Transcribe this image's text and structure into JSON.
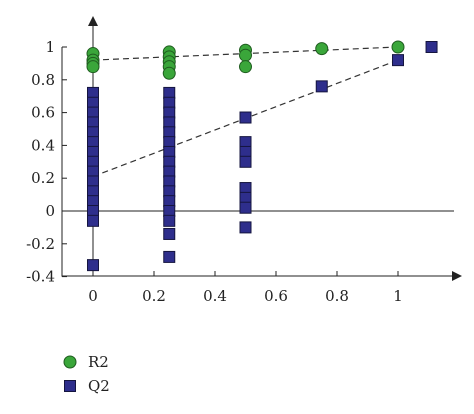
{
  "chart_data": {
    "type": "scatter",
    "title": "",
    "xlabel": "",
    "ylabel": "",
    "xlim": [
      -0.1,
      1.15
    ],
    "ylim": [
      -0.4,
      1.1
    ],
    "x_ticks": [
      0,
      0.2,
      0.4,
      0.6,
      0.8,
      1
    ],
    "x_tick_labels": [
      "0",
      "0.2",
      "0.4",
      "0.6",
      "0.8",
      "1"
    ],
    "y_ticks": [
      -0.4,
      -0.2,
      0,
      0.2,
      0.4,
      0.6,
      0.8,
      1
    ],
    "y_tick_labels": [
      "-0.4",
      "-0.2",
      "0",
      "0.2",
      "0.4",
      "0.6",
      "0.8",
      "1"
    ],
    "grid": false,
    "legend_position": "bottom-left",
    "series": [
      {
        "name": "R2",
        "marker": "circle",
        "color": "#3aa63a",
        "points": [
          [
            0,
            0.96
          ],
          [
            0,
            0.92
          ],
          [
            0,
            0.9
          ],
          [
            0,
            0.88
          ],
          [
            0.25,
            0.97
          ],
          [
            0.25,
            0.94
          ],
          [
            0.25,
            0.91
          ],
          [
            0.25,
            0.88
          ],
          [
            0.25,
            0.84
          ],
          [
            0.5,
            0.98
          ],
          [
            0.5,
            0.95
          ],
          [
            0.5,
            0.88
          ],
          [
            0.75,
            0.99
          ],
          [
            1,
            1.0
          ]
        ]
      },
      {
        "name": "Q2",
        "marker": "square",
        "color": "#2e2e8c",
        "points": [
          [
            0,
            0.72
          ],
          [
            0,
            0.66
          ],
          [
            0,
            0.6
          ],
          [
            0,
            0.54
          ],
          [
            0,
            0.48
          ],
          [
            0,
            0.42
          ],
          [
            0,
            0.36
          ],
          [
            0,
            0.3
          ],
          [
            0,
            0.24
          ],
          [
            0,
            0.18
          ],
          [
            0,
            0.12
          ],
          [
            0,
            0.06
          ],
          [
            0,
            0.0
          ],
          [
            0,
            -0.06
          ],
          [
            0,
            -0.33
          ],
          [
            0.25,
            0.72
          ],
          [
            0.25,
            0.66
          ],
          [
            0.25,
            0.6
          ],
          [
            0.25,
            0.54
          ],
          [
            0.25,
            0.48
          ],
          [
            0.25,
            0.42
          ],
          [
            0.25,
            0.36
          ],
          [
            0.25,
            0.3
          ],
          [
            0.25,
            0.24
          ],
          [
            0.25,
            0.18
          ],
          [
            0.25,
            0.12
          ],
          [
            0.25,
            0.06
          ],
          [
            0.25,
            0.0
          ],
          [
            0.25,
            -0.06
          ],
          [
            0.25,
            -0.14
          ],
          [
            0.25,
            -0.28
          ],
          [
            0.5,
            0.57
          ],
          [
            0.5,
            0.42
          ],
          [
            0.5,
            0.36
          ],
          [
            0.5,
            0.3
          ],
          [
            0.5,
            0.14
          ],
          [
            0.5,
            0.08
          ],
          [
            0.5,
            0.02
          ],
          [
            0.5,
            -0.1
          ],
          [
            0.75,
            0.76
          ],
          [
            1,
            0.92
          ],
          [
            1.11,
            1.0
          ]
        ]
      }
    ],
    "trend_lines": [
      {
        "series": "R2",
        "from": [
          0,
          0.92
        ],
        "to": [
          1,
          1.0
        ]
      },
      {
        "series": "Q2",
        "from": [
          0,
          0.21
        ],
        "to": [
          1,
          0.92
        ]
      }
    ]
  }
}
